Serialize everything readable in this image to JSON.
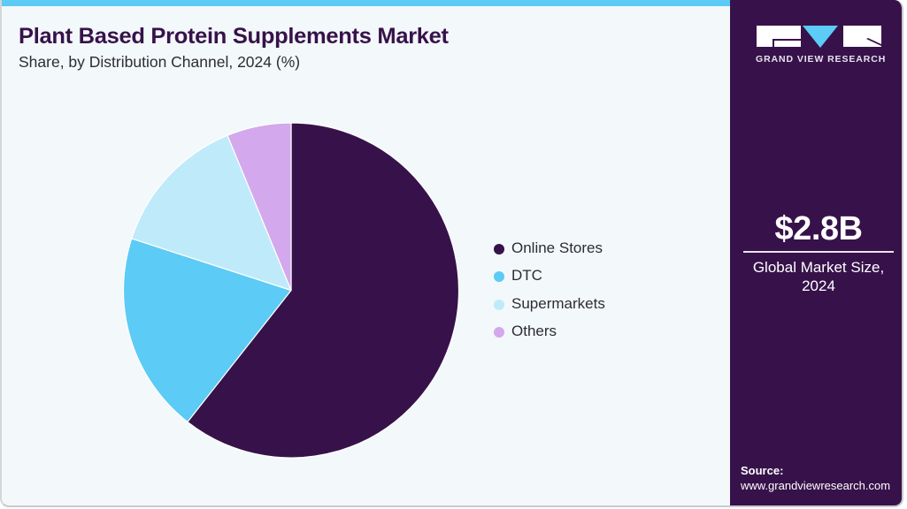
{
  "header": {
    "title": "Plant Based Protein Supplements Market",
    "subtitle": "Share, by Distribution Channel, 2024 (%)"
  },
  "colors": {
    "accent_bar": "#5ccbf5",
    "title": "#37124a",
    "panel_bg": "#37124a",
    "card_bg": "#f3f8fb"
  },
  "chart_data": {
    "type": "pie",
    "title": "Plant Based Protein Supplements Market",
    "subtitle": "Share, by Distribution Channel, 2024 (%)",
    "categories": [
      "Online Stores",
      "DTC",
      "Supermarkets",
      "Others"
    ],
    "values": [
      60.6,
      19.4,
      13.8,
      6.2
    ],
    "colors": [
      "#37124a",
      "#5ccbf5",
      "#bfeaf9",
      "#d4a8ec"
    ],
    "start_angle_deg": 0,
    "direction": "clockwise",
    "legend_position": "right",
    "center": [
      327,
      328.5
    ],
    "radius": 189.5
  },
  "legend": {
    "items": [
      {
        "label": "Online Stores",
        "color": "#37124a"
      },
      {
        "label": "DTC",
        "color": "#5ccbf5"
      },
      {
        "label": "Supermarkets",
        "color": "#bfeaf9"
      },
      {
        "label": "Others",
        "color": "#d4a8ec"
      }
    ]
  },
  "side_panel": {
    "logo_text": "GRAND VIEW RESEARCH",
    "market_value": "$2.8B",
    "market_label_line1": "Global Market Size,",
    "market_label_line2": "2024",
    "source_label": "Source:",
    "source_url": "www.grandviewresearch.com"
  }
}
